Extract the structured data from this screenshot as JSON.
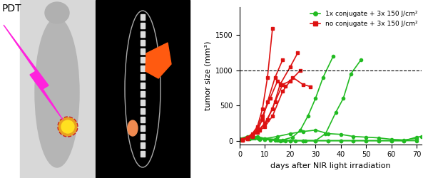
{
  "image_panel": {
    "label": "PDT"
  },
  "chart_data": {
    "type": "line",
    "x_label": "days after NIR light irradiation",
    "y_label": "tumor size (mm³)",
    "xlim": [
      0,
      72
    ],
    "xticks": [
      0,
      10,
      20,
      30,
      40,
      50,
      60,
      70
    ],
    "ylim": [
      -50,
      1900
    ],
    "yticks": [
      0,
      500,
      1000,
      1500
    ],
    "reference_line": 1000,
    "legend": "upper right",
    "grid": false,
    "series": [
      {
        "name": "1x conjugate + 3x 150 J/cm²",
        "color": "#22bb22",
        "marker": "circle",
        "line_style": "solid",
        "lines": [
          {
            "x": [
              0,
              3,
              7,
              10,
              14,
              17,
              21,
              24,
              27,
              30,
              33,
              37
            ],
            "values": [
              20,
              40,
              60,
              30,
              20,
              10,
              50,
              150,
              350,
              600,
              900,
              1200
            ]
          },
          {
            "x": [
              0,
              3,
              7,
              10,
              14,
              18,
              22,
              26,
              30,
              34,
              38,
              41,
              44,
              48
            ],
            "values": [
              20,
              50,
              40,
              20,
              10,
              0,
              0,
              0,
              0,
              100,
              400,
              600,
              950,
              1150
            ]
          },
          {
            "x": [
              0,
              5,
              10,
              15,
              20,
              25,
              30,
              35,
              40,
              45,
              50,
              55,
              60,
              65,
              70
            ],
            "values": [
              20,
              40,
              30,
              60,
              100,
              130,
              150,
              100,
              90,
              60,
              50,
              40,
              20,
              10,
              30
            ]
          },
          {
            "x": [
              0,
              3,
              6,
              10,
              15,
              20,
              25,
              30,
              35,
              40,
              45,
              50,
              55,
              60,
              65,
              70
            ],
            "values": [
              30,
              60,
              40,
              20,
              10,
              0,
              0,
              0,
              0,
              0,
              0,
              0,
              0,
              0,
              0,
              0
            ]
          },
          {
            "x": [
              0,
              4,
              8,
              12,
              16,
              20,
              25,
              30,
              35,
              40,
              45,
              50,
              55,
              60,
              65,
              70,
              72
            ],
            "values": [
              10,
              30,
              20,
              10,
              0,
              0,
              0,
              0,
              0,
              0,
              0,
              0,
              0,
              0,
              0,
              50,
              60
            ]
          }
        ]
      },
      {
        "name": "no conjugate + 3x 150 J/cm²",
        "color": "#dd1111",
        "marker": "square",
        "line_style": "solid",
        "lines": [
          {
            "x": [
              1,
              3,
              5,
              7,
              9,
              11,
              13
            ],
            "values": [
              20,
              50,
              100,
              200,
              450,
              900,
              1600
            ]
          },
          {
            "x": [
              1,
              3,
              5,
              7,
              9,
              11,
              14,
              17
            ],
            "values": [
              15,
              40,
              80,
              150,
              300,
              550,
              900,
              1150
            ]
          },
          {
            "x": [
              1,
              3,
              5,
              7,
              10,
              13,
              16,
              20,
              23
            ],
            "values": [
              20,
              40,
              80,
              130,
              250,
              450,
              800,
              1050,
              1250
            ]
          },
          {
            "x": [
              1,
              3,
              5,
              7,
              10,
              13,
              17,
              21,
              25,
              28
            ],
            "values": [
              10,
              30,
              60,
              120,
              200,
              350,
              700,
              900,
              800,
              770
            ]
          },
          {
            "x": [
              1,
              3,
              5,
              8,
              11,
              14,
              17,
              20,
              24
            ],
            "values": [
              10,
              30,
              70,
              150,
              300,
              550,
              800,
              850,
              1000
            ]
          },
          {
            "x": [
              1,
              3,
              5,
              7,
              9,
              12,
              15,
              18
            ],
            "values": [
              20,
              40,
              90,
              180,
              350,
              600,
              850,
              780
            ]
          }
        ]
      }
    ]
  }
}
